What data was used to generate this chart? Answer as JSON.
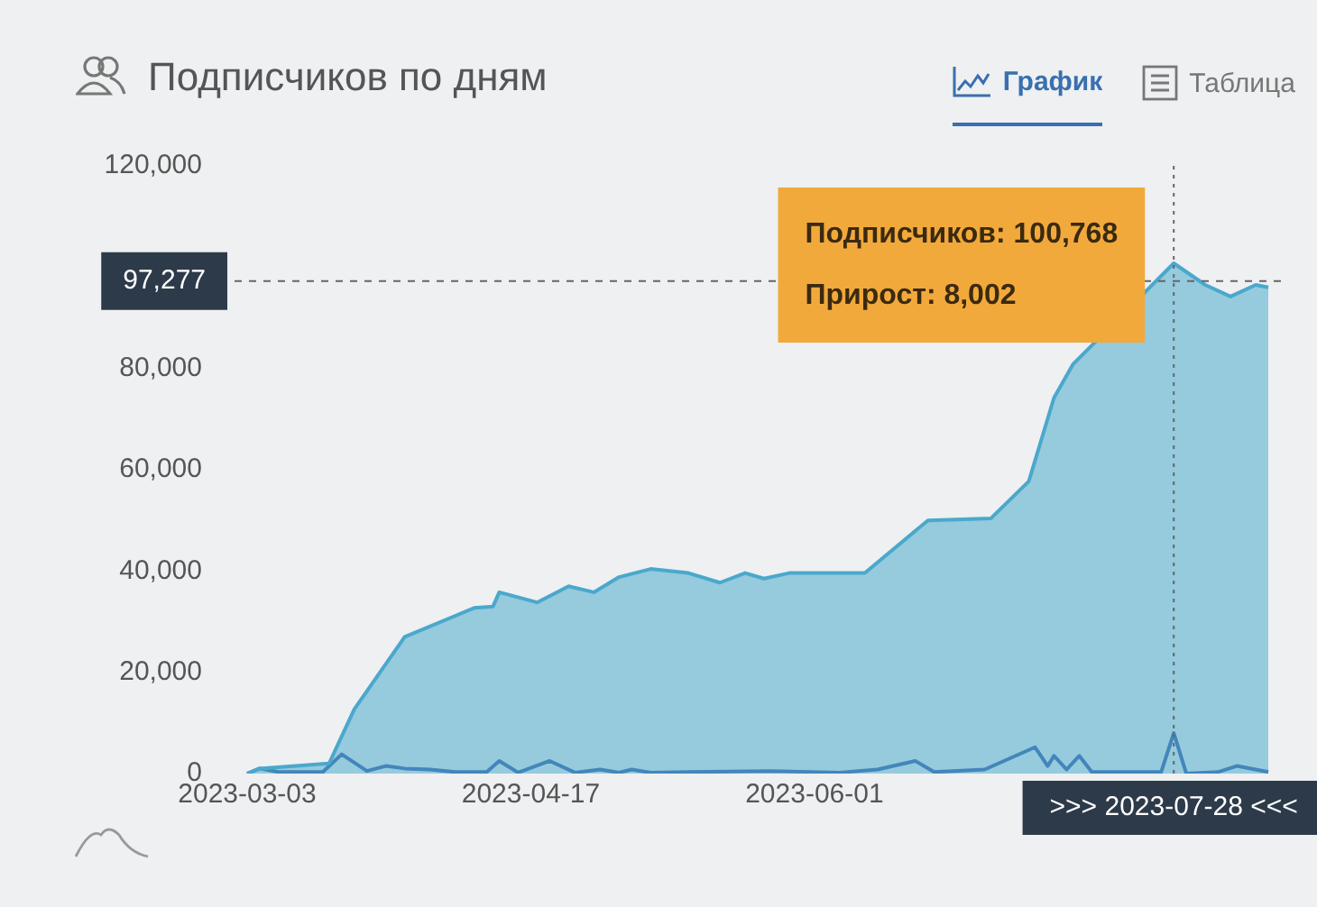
{
  "chart_data": {
    "type": "area",
    "title": "Подписчиков по дням",
    "xlim": [
      "2023-03-01",
      "2023-08-14"
    ],
    "xticks": [
      "2023-03-03",
      "2023-04-17",
      "2023-06-01"
    ],
    "ylim": [
      0,
      120000
    ],
    "yticks": [
      0,
      {
        "value": 20000,
        "label": "20,000"
      },
      {
        "value": 40000,
        "label": "40,000"
      },
      {
        "value": 60000,
        "label": "60,000"
      },
      {
        "value": 80000,
        "label": "80,000"
      },
      {
        "value": 120000,
        "label": "120,000"
      }
    ],
    "grid": false,
    "legend": false,
    "marker": "none",
    "series": [
      {
        "type": "area",
        "color": "#4aa8cc",
        "x": [
          "2023-03-03",
          "2023-03-05",
          "2023-03-16",
          "2023-03-20",
          "2023-03-28",
          "2023-04-08",
          "2023-04-11",
          "2023-04-12",
          "2023-04-18",
          "2023-04-23",
          "2023-04-27",
          "2023-05-01",
          "2023-05-06",
          "2023-05-12",
          "2023-05-17",
          "2023-05-21",
          "2023-05-24",
          "2023-05-28",
          "2023-06-02",
          "2023-06-09",
          "2023-06-19",
          "2023-06-29",
          "2023-07-05",
          "2023-07-09",
          "2023-07-12",
          "2023-07-28",
          "2023-08-02",
          "2023-08-06",
          "2023-08-10",
          "2023-08-12"
        ],
        "values": [
          0,
          1000,
          2000,
          12700,
          27000,
          32700,
          33000,
          35800,
          33800,
          37000,
          35800,
          38800,
          40400,
          39600,
          37700,
          39600,
          38500,
          39600,
          39600,
          39600,
          50000,
          50400,
          57700,
          74200,
          80800,
          100768,
          96500,
          94200,
          96500,
          96000
        ]
      },
      {
        "type": "line",
        "color": "#3a5ea8",
        "x": [
          "2023-03-03",
          "2023-03-05",
          "2023-03-08",
          "2023-03-15",
          "2023-03-18",
          "2023-03-22",
          "2023-03-25",
          "2023-03-28",
          "2023-04-01",
          "2023-04-05",
          "2023-04-10",
          "2023-04-12",
          "2023-04-15",
          "2023-04-20",
          "2023-04-24",
          "2023-04-28",
          "2023-05-01",
          "2023-05-03",
          "2023-05-06",
          "2023-05-25",
          "2023-06-05",
          "2023-06-11",
          "2023-06-17",
          "2023-06-20",
          "2023-06-28",
          "2023-07-06",
          "2023-07-08",
          "2023-07-09",
          "2023-07-11",
          "2023-07-13",
          "2023-07-15",
          "2023-07-26",
          "2023-07-28",
          "2023-07-30",
          "2023-08-04",
          "2023-08-07",
          "2023-08-12"
        ],
        "values": [
          0,
          1000,
          300,
          300,
          3800,
          500,
          1500,
          1000,
          800,
          300,
          300,
          2500,
          200,
          2500,
          200,
          800,
          200,
          800,
          200,
          500,
          200,
          800,
          2500,
          300,
          800,
          5200,
          1500,
          3500,
          800,
          3500,
          300,
          300,
          8002,
          0,
          300,
          1500,
          300
        ]
      }
    ],
    "ref_lines": [
      {
        "axis": "y",
        "value": 97277,
        "label": "97,277",
        "line_style": "dashed"
      },
      {
        "axis": "x",
        "value": "2023-07-28",
        "label": ">>> 2023-07-28 <<<",
        "line_style": "dotted"
      }
    ],
    "annotations": [
      "Подписчиков: 100,768",
      "Прирост: 8,002",
      "График",
      "Таблица"
    ]
  }
}
